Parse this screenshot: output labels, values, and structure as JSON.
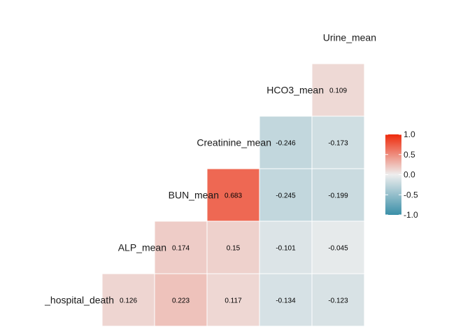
{
  "chart_data": {
    "type": "heatmap",
    "title": "",
    "variables": [
      "_hospital_death",
      "ALP_mean",
      "BUN_mean",
      "Creatinine_mean",
      "HCO3_mean",
      "Urine_mean"
    ],
    "cells": [
      {
        "row": "_hospital_death",
        "col": "ALP_mean",
        "value": 0.126,
        "label": "0.126"
      },
      {
        "row": "_hospital_death",
        "col": "BUN_mean",
        "value": 0.223,
        "label": "0.223"
      },
      {
        "row": "_hospital_death",
        "col": "Creatinine_mean",
        "value": 0.117,
        "label": "0.117"
      },
      {
        "row": "_hospital_death",
        "col": "HCO3_mean",
        "value": -0.134,
        "label": "-0.134"
      },
      {
        "row": "_hospital_death",
        "col": "Urine_mean",
        "value": -0.123,
        "label": "-0.123"
      },
      {
        "row": "ALP_mean",
        "col": "BUN_mean",
        "value": 0.174,
        "label": "0.174"
      },
      {
        "row": "ALP_mean",
        "col": "Creatinine_mean",
        "value": 0.15,
        "label": "0.15"
      },
      {
        "row": "ALP_mean",
        "col": "HCO3_mean",
        "value": -0.101,
        "label": "-0.101"
      },
      {
        "row": "ALP_mean",
        "col": "Urine_mean",
        "value": -0.045,
        "label": "-0.045"
      },
      {
        "row": "BUN_mean",
        "col": "Creatinine_mean",
        "value": 0.683,
        "label": "0.683"
      },
      {
        "row": "BUN_mean",
        "col": "HCO3_mean",
        "value": -0.245,
        "label": "-0.245"
      },
      {
        "row": "BUN_mean",
        "col": "Urine_mean",
        "value": -0.199,
        "label": "-0.199"
      },
      {
        "row": "Creatinine_mean",
        "col": "HCO3_mean",
        "value": -0.246,
        "label": "-0.246"
      },
      {
        "row": "Creatinine_mean",
        "col": "Urine_mean",
        "value": -0.173,
        "label": "-0.173"
      },
      {
        "row": "HCO3_mean",
        "col": "Urine_mean",
        "value": 0.109,
        "label": "0.109"
      }
    ],
    "legend": {
      "range": [
        -1,
        1
      ],
      "ticks": [
        "1.0",
        "0.5",
        "0.0",
        "-0.5",
        "-1.0"
      ],
      "tick_values": [
        1,
        0.5,
        0,
        -0.5,
        -1
      ],
      "placement": "right",
      "colors": {
        "low": "#3A8FA8",
        "mid": "#EEEEEE",
        "high": "#EE2A0B"
      }
    }
  }
}
